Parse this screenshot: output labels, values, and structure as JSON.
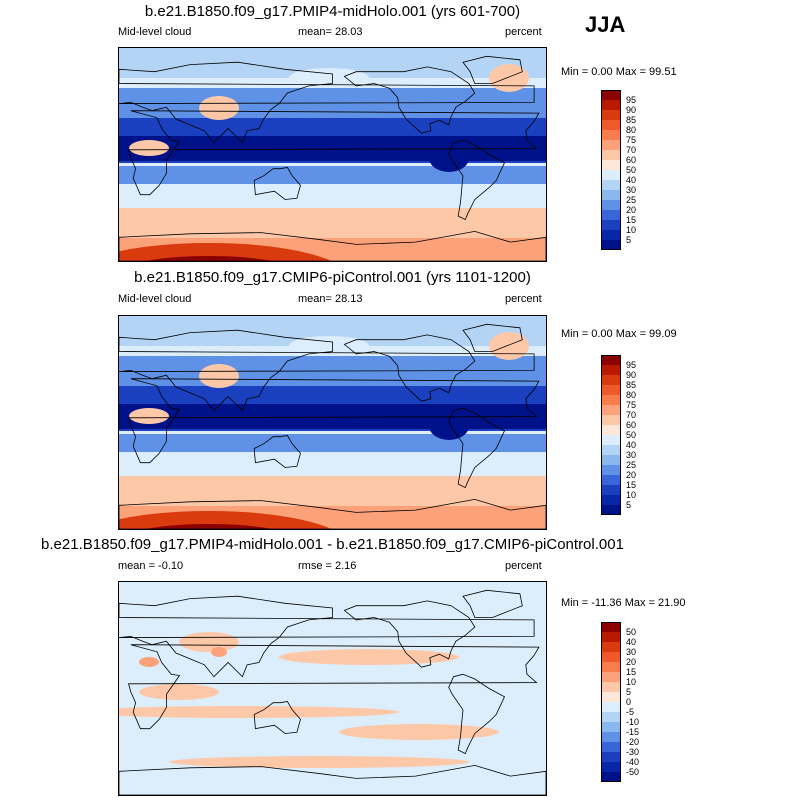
{
  "season": "JJA",
  "panels": [
    {
      "title": "b.e21.B1850.f09_g17.PMIP4-midHolo.001 (yrs 601-700)",
      "left_label": "Mid-level cloud",
      "center_label": "mean=  28.03",
      "right_label": "percent",
      "minmax": "Min =  0.00 Max =  99.51",
      "colorbar": {
        "ticks": [
          "95",
          "90",
          "85",
          "80",
          "75",
          "70",
          "60",
          "50",
          "40",
          "30",
          "25",
          "20",
          "15",
          "10",
          "5"
        ],
        "colors": [
          "#8b0000",
          "#b81a00",
          "#d93a0e",
          "#ee5a2a",
          "#f77d4d",
          "#fca27a",
          "#fdc8a8",
          "#fde7d8",
          "#dceefb",
          "#b3d4f5",
          "#8bb7ef",
          "#5f92e6",
          "#3866d8",
          "#1a40c0",
          "#0a26a8",
          "#00128a"
        ]
      },
      "style": "abs"
    },
    {
      "title": "b.e21.B1850.f09_g17.CMIP6-piControl.001 (yrs 1101-1200)",
      "left_label": "Mid-level cloud",
      "center_label": "mean=  28.13",
      "right_label": "percent",
      "minmax": "Min =  0.00 Max =  99.09",
      "colorbar": {
        "ticks": [
          "95",
          "90",
          "85",
          "80",
          "75",
          "70",
          "60",
          "50",
          "40",
          "30",
          "25",
          "20",
          "15",
          "10",
          "5"
        ],
        "colors": [
          "#8b0000",
          "#b81a00",
          "#d93a0e",
          "#ee5a2a",
          "#f77d4d",
          "#fca27a",
          "#fdc8a8",
          "#fde7d8",
          "#dceefb",
          "#b3d4f5",
          "#8bb7ef",
          "#5f92e6",
          "#3866d8",
          "#1a40c0",
          "#0a26a8",
          "#00128a"
        ]
      },
      "style": "abs"
    },
    {
      "title": "b.e21.B1850.f09_g17.PMIP4-midHolo.001 - b.e21.B1850.f09_g17.CMIP6-piControl.001",
      "left_label": "mean =  -0.10",
      "center_label": "rmse =   2.16",
      "right_label": "percent",
      "minmax": "Min = -11.36 Max =  21.90",
      "colorbar": {
        "ticks": [
          "50",
          "40",
          "30",
          "20",
          "15",
          "10",
          "5",
          "0",
          "-5",
          "-10",
          "-15",
          "-20",
          "-30",
          "-40",
          "-50"
        ],
        "colors": [
          "#8b0000",
          "#b81a00",
          "#d93a0e",
          "#ee5a2a",
          "#f77d4d",
          "#fca27a",
          "#fdc8a8",
          "#fde7d8",
          "#dceefb",
          "#b3d4f5",
          "#8bb7ef",
          "#5f92e6",
          "#3866d8",
          "#1a40c0",
          "#0a26a8",
          "#00128a"
        ]
      },
      "style": "diff"
    }
  ]
}
